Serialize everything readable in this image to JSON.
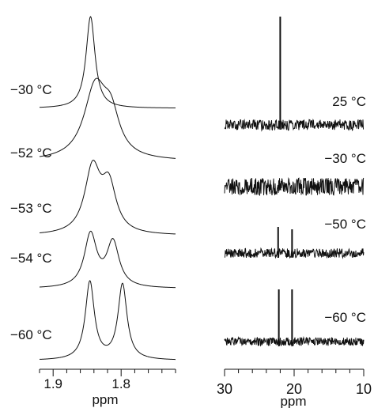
{
  "chart_data": [
    {
      "type": "line",
      "panel": "left",
      "xlabel": "ppm",
      "x_ticks": [
        "1.9",
        "1.8"
      ],
      "xlim": [
        1.92,
        1.72
      ],
      "x_reversed": true,
      "series": [
        {
          "name": "−30 °C",
          "peaks": [
            {
              "ppm": 1.845,
              "height": 1.0,
              "width": 0.008
            }
          ]
        },
        {
          "name": "−52 °C",
          "peaks": [
            {
              "ppm": 1.838,
              "height": 0.82,
              "width": 0.02
            },
            {
              "ppm": 1.815,
              "height": 0.42,
              "width": 0.015
            }
          ]
        },
        {
          "name": "−53 °C",
          "peaks": [
            {
              "ppm": 1.842,
              "height": 0.73,
              "width": 0.014
            },
            {
              "ppm": 1.818,
              "height": 0.52,
              "width": 0.013
            }
          ]
        },
        {
          "name": "−54 °C",
          "peaks": [
            {
              "ppm": 1.845,
              "height": 0.65,
              "width": 0.011
            },
            {
              "ppm": 1.812,
              "height": 0.55,
              "width": 0.011
            }
          ]
        },
        {
          "name": "−60 °C",
          "peaks": [
            {
              "ppm": 1.846,
              "height": 0.88,
              "width": 0.008
            },
            {
              "ppm": 1.798,
              "height": 0.85,
              "width": 0.008
            }
          ]
        }
      ]
    },
    {
      "type": "line",
      "panel": "right",
      "xlabel": "ppm",
      "x_ticks": [
        "30",
        "20",
        "10"
      ],
      "xlim": [
        30,
        10
      ],
      "x_reversed": true,
      "series": [
        {
          "name": "25 °C",
          "noise": 0.1,
          "peaks": [
            {
              "ppm": 22.0,
              "height": 1.0
            }
          ]
        },
        {
          "name": "−30 °C",
          "noise": 0.22,
          "peaks": []
        },
        {
          "name": "−50 °C",
          "noise": 0.12,
          "peaks": [
            {
              "ppm": 22.3,
              "height": 0.33
            },
            {
              "ppm": 20.3,
              "height": 0.3
            }
          ]
        },
        {
          "name": "−60 °C",
          "noise": 0.1,
          "peaks": [
            {
              "ppm": 22.2,
              "height": 0.6
            },
            {
              "ppm": 20.3,
              "height": 0.6
            }
          ]
        }
      ]
    }
  ]
}
